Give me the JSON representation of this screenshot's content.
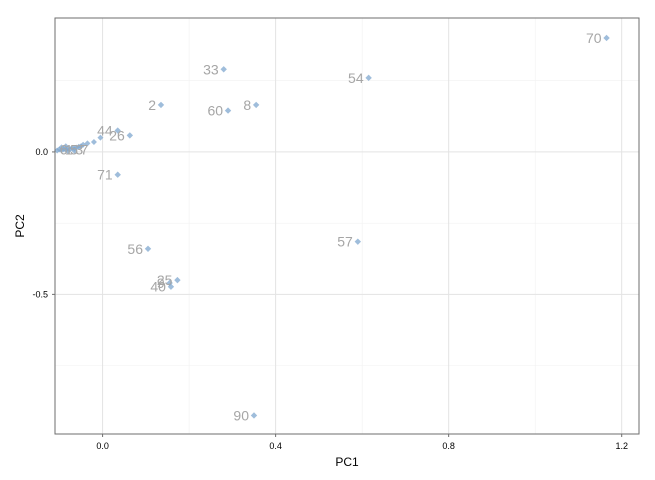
{
  "chart_data": {
    "type": "scatter",
    "xlabel": "PC1",
    "ylabel": "PC2",
    "xlim": [
      -0.11,
      1.24
    ],
    "ylim": [
      -0.99,
      0.47
    ],
    "grid": true,
    "x_ticks": [
      0.0,
      0.4,
      0.8,
      1.2
    ],
    "x_tick_labels": [
      "0.0",
      "0.4",
      "0.8",
      "1.2"
    ],
    "y_ticks": [
      -0.5,
      0.0
    ],
    "y_tick_labels": [
      "-0.5",
      "0.0"
    ],
    "colors": {
      "point": "#7fa7cf",
      "label": "#a6a6a6",
      "grid_major": "#e3e3e3",
      "grid_minor": "#f1f1f1",
      "panel_border": "#6e6e6e"
    },
    "labeled_points": [
      {
        "label": "70",
        "x": 1.165,
        "y": 0.4
      },
      {
        "label": "54",
        "x": 0.615,
        "y": 0.26
      },
      {
        "label": "33",
        "x": 0.28,
        "y": 0.29
      },
      {
        "label": "8",
        "x": 0.355,
        "y": 0.165
      },
      {
        "label": "60",
        "x": 0.29,
        "y": 0.145
      },
      {
        "label": "2",
        "x": 0.135,
        "y": 0.165
      },
      {
        "label": "44",
        "x": 0.035,
        "y": 0.075
      },
      {
        "label": "26",
        "x": 0.063,
        "y": 0.058
      },
      {
        "label": "71",
        "x": 0.035,
        "y": -0.08
      },
      {
        "label": "56",
        "x": 0.105,
        "y": -0.34
      },
      {
        "label": "57",
        "x": 0.59,
        "y": -0.315
      },
      {
        "label": "25",
        "x": 0.173,
        "y": -0.45
      },
      {
        "label": "9",
        "x": 0.155,
        "y": -0.46
      },
      {
        "label": "40",
        "x": 0.158,
        "y": -0.473
      },
      {
        "label": "90",
        "x": 0.35,
        "y": -0.925
      }
    ],
    "cluster_points": [
      {
        "x": -0.005,
        "y": 0.05
      },
      {
        "x": -0.02,
        "y": 0.035
      },
      {
        "x": -0.035,
        "y": 0.03
      },
      {
        "x": -0.045,
        "y": 0.025
      },
      {
        "x": -0.05,
        "y": 0.02
      },
      {
        "x": -0.055,
        "y": 0.018
      },
      {
        "x": -0.06,
        "y": 0.015
      },
      {
        "x": -0.065,
        "y": 0.012
      },
      {
        "x": -0.07,
        "y": 0.014
      },
      {
        "x": -0.075,
        "y": 0.01
      },
      {
        "x": -0.08,
        "y": 0.012
      },
      {
        "x": -0.085,
        "y": 0.008
      },
      {
        "x": -0.09,
        "y": 0.01
      },
      {
        "x": -0.095,
        "y": 0.006
      },
      {
        "x": -0.1,
        "y": 0.009
      },
      {
        "x": -0.105,
        "y": 0.005
      },
      {
        "x": -0.065,
        "y": 0.004
      },
      {
        "x": -0.08,
        "y": 0.003
      },
      {
        "x": -0.095,
        "y": 0.016
      },
      {
        "x": -0.085,
        "y": 0.02
      }
    ],
    "cluster_labels": [
      "6",
      "1",
      "5",
      "3",
      "7"
    ]
  }
}
